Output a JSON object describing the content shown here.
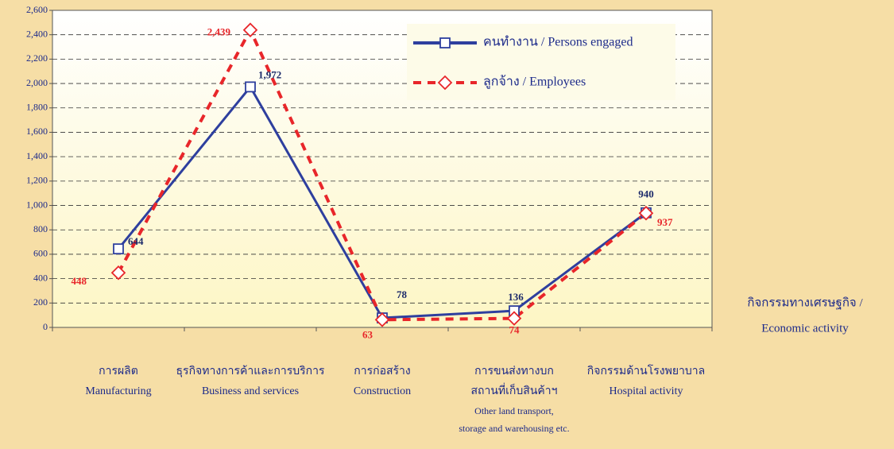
{
  "chart_data": {
    "type": "line",
    "categories": [
      [
        "การผลิต",
        "Manufacturing"
      ],
      [
        "ธุรกิจทางการค้าและการบริการ",
        "Business and services"
      ],
      [
        "การก่อสร้าง",
        "Construction"
      ],
      [
        "การขนส่งทางบก",
        "สถานที่เก็บสินค้าฯ",
        "Other land transport,",
        "storage and warehousing etc."
      ],
      [
        "กิจกรรมด้านโรงพยาบาล",
        "Hospital activity"
      ]
    ],
    "x_label": [
      "กิจกรรมทางเศรษฐกิจ /",
      "Economic activity"
    ],
    "series": [
      {
        "name": "คนทำงาน / Persons engaged",
        "color": "#2e3f9e",
        "values": [
          644,
          1972,
          78,
          136,
          940
        ],
        "value_labels": [
          "644",
          "1,972",
          "78",
          "136",
          "940"
        ]
      },
      {
        "name": "ลูกจ้าง / Employees",
        "color": "#e8262a",
        "values": [
          448,
          2439,
          63,
          74,
          937
        ],
        "value_labels": [
          "448",
          "2,439",
          "63",
          "74",
          "937"
        ]
      }
    ],
    "ylim": [
      0,
      2600
    ],
    "yticks": [
      0,
      200,
      400,
      600,
      800,
      {
        "value": 1000,
        "label": "1,000"
      },
      {
        "value": 1200,
        "label": "1,200"
      },
      {
        "value": 1400,
        "label": "1,400"
      },
      {
        "value": 1600,
        "label": "1,600"
      },
      {
        "value": 1800,
        "label": "1,800"
      },
      {
        "value": 2000,
        "label": "2,000"
      },
      {
        "value": 2200,
        "label": "2,200"
      },
      {
        "value": 2400,
        "label": "2,400"
      },
      {
        "value": 2600,
        "label": "2,600"
      }
    ],
    "grid": true
  }
}
